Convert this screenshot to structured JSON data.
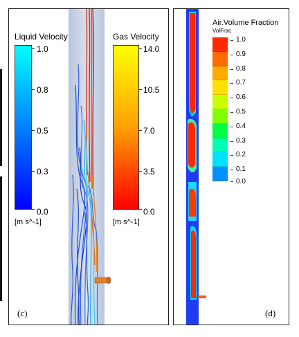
{
  "panel_c": {
    "label": "(c)",
    "liquid_colorbar": {
      "title": "Liquid Velocity",
      "ticks": [
        "1.0",
        "0.8",
        "0.5",
        "0.3",
        "0.0"
      ],
      "unit": "[m s^-1]",
      "colors": [
        "#00ffff",
        "#0000ff"
      ]
    },
    "gas_colorbar": {
      "title": "Gas Velocity",
      "ticks": [
        "14.0",
        "10.5",
        "7.0",
        "3.5",
        "0.0"
      ],
      "unit": "[m s^-1]",
      "colors": [
        "#ffff00",
        "#ff0000"
      ]
    }
  },
  "panel_d": {
    "label": "(d)",
    "legend": {
      "title": "Air.Volume Fraction",
      "subtitle": "VolFrac",
      "values": [
        "1.0",
        "0.9",
        "0.8",
        "0.7",
        "0.6",
        "0.5",
        "0.4",
        "0.3",
        "0.2",
        "0.1",
        "0.0"
      ],
      "colors": [
        "#ff2a00",
        "#ff6a00",
        "#ffaa00",
        "#ffe000",
        "#c8ff00",
        "#80ff00",
        "#00ff40",
        "#00ffb0",
        "#00e0ff",
        "#0090ff",
        "#0040ff"
      ]
    }
  }
}
